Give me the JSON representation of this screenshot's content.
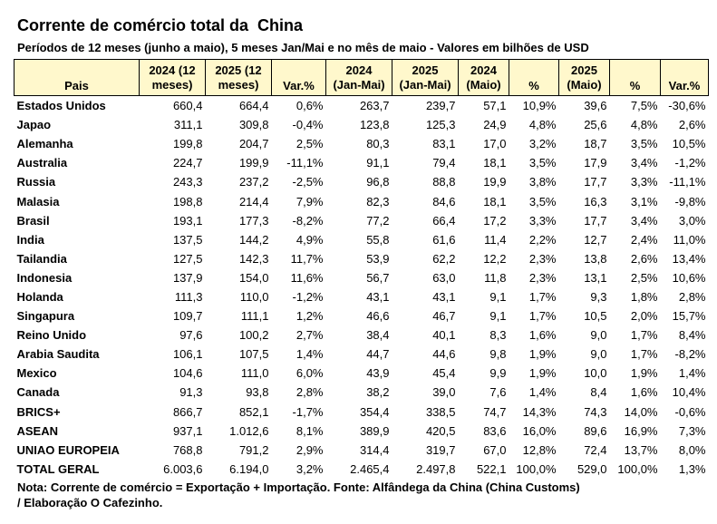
{
  "title": "Corrente de comércio total da  China",
  "subtitle": "Períodos de 12 meses (junho a maio), 5 meses Jan/Mai e no mês de maio - Valores em bilhões de USD",
  "columns": [
    [
      "Pais"
    ],
    [
      "2024 (12",
      "meses)"
    ],
    [
      "2025 (12",
      "meses)"
    ],
    [
      "Var.%"
    ],
    [
      "2024",
      "(Jan-Mai)"
    ],
    [
      "2025",
      "(Jan-Mai)"
    ],
    [
      "2024",
      "(Maio)"
    ],
    [
      "%"
    ],
    [
      "2025",
      "(Maio)"
    ],
    [
      "%"
    ],
    [
      "Var.%"
    ]
  ],
  "rows": [
    [
      "Estados Unidos",
      "660,4",
      "664,4",
      "0,6%",
      "263,7",
      "239,7",
      "57,1",
      "10,9%",
      "39,6",
      "7,5%",
      "-30,6%"
    ],
    [
      "Japao",
      "311,1",
      "309,8",
      "-0,4%",
      "123,8",
      "125,3",
      "24,9",
      "4,8%",
      "25,6",
      "4,8%",
      "2,6%"
    ],
    [
      "Alemanha",
      "199,8",
      "204,7",
      "2,5%",
      "80,3",
      "83,1",
      "17,0",
      "3,2%",
      "18,7",
      "3,5%",
      "10,5%"
    ],
    [
      "Australia",
      "224,7",
      "199,9",
      "-11,1%",
      "91,1",
      "79,4",
      "18,1",
      "3,5%",
      "17,9",
      "3,4%",
      "-1,2%"
    ],
    [
      "Russia",
      "243,3",
      "237,2",
      "-2,5%",
      "96,8",
      "88,8",
      "19,9",
      "3,8%",
      "17,7",
      "3,3%",
      "-11,1%"
    ],
    [
      "Malasia",
      "198,8",
      "214,4",
      "7,9%",
      "82,3",
      "84,6",
      "18,1",
      "3,5%",
      "16,3",
      "3,1%",
      "-9,8%"
    ],
    [
      "Brasil",
      "193,1",
      "177,3",
      "-8,2%",
      "77,2",
      "66,4",
      "17,2",
      "3,3%",
      "17,7",
      "3,4%",
      "3,0%"
    ],
    [
      "India",
      "137,5",
      "144,2",
      "4,9%",
      "55,8",
      "61,6",
      "11,4",
      "2,2%",
      "12,7",
      "2,4%",
      "11,0%"
    ],
    [
      "Tailandia",
      "127,5",
      "142,3",
      "11,7%",
      "53,9",
      "62,2",
      "12,2",
      "2,3%",
      "13,8",
      "2,6%",
      "13,4%"
    ],
    [
      "Indonesia",
      "137,9",
      "154,0",
      "11,6%",
      "56,7",
      "63,0",
      "11,8",
      "2,3%",
      "13,1",
      "2,5%",
      "10,6%"
    ],
    [
      "Holanda",
      "111,3",
      "110,0",
      "-1,2%",
      "43,1",
      "43,1",
      "9,1",
      "1,7%",
      "9,3",
      "1,8%",
      "2,8%"
    ],
    [
      "Singapura",
      "109,7",
      "111,1",
      "1,2%",
      "46,6",
      "46,7",
      "9,1",
      "1,7%",
      "10,5",
      "2,0%",
      "15,7%"
    ],
    [
      "Reino Unido",
      "97,6",
      "100,2",
      "2,7%",
      "38,4",
      "40,1",
      "8,3",
      "1,6%",
      "9,0",
      "1,7%",
      "8,4%"
    ],
    [
      "Arabia Saudita",
      "106,1",
      "107,5",
      "1,4%",
      "44,7",
      "44,6",
      "9,8",
      "1,9%",
      "9,0",
      "1,7%",
      "-8,2%"
    ],
    [
      "Mexico",
      "104,6",
      "111,0",
      "6,0%",
      "43,9",
      "45,4",
      "9,9",
      "1,9%",
      "10,0",
      "1,9%",
      "1,4%"
    ],
    [
      "Canada",
      "91,3",
      "93,8",
      "2,8%",
      "38,2",
      "39,0",
      "7,6",
      "1,4%",
      "8,4",
      "1,6%",
      "10,4%"
    ],
    [
      "BRICS+",
      "866,7",
      "852,1",
      "-1,7%",
      "354,4",
      "338,5",
      "74,7",
      "14,3%",
      "74,3",
      "14,0%",
      "-0,6%"
    ],
    [
      "ASEAN",
      "937,1",
      "1.012,6",
      "8,1%",
      "389,9",
      "420,5",
      "83,6",
      "16,0%",
      "89,6",
      "16,9%",
      "7,3%"
    ],
    [
      "UNIAO EUROPEIA",
      "768,8",
      "791,2",
      "2,9%",
      "314,4",
      "319,7",
      "67,0",
      "12,8%",
      "72,4",
      "13,7%",
      "8,0%"
    ],
    [
      "TOTAL GERAL",
      "6.003,6",
      "6.194,0",
      "3,2%",
      "2.465,4",
      "2.497,8",
      "522,1",
      "100,0%",
      "529,0",
      "100,0%",
      "1,3%"
    ]
  ],
  "note_line1": "Nota: Corrente de comércio = Exportação + Importação. Fonte: Alfândega da China (China Customs)",
  "note_line2": "/ Elaboração O Cafezinho.",
  "colors": {
    "header_bg": "#fff8cc",
    "border": "#000000"
  }
}
